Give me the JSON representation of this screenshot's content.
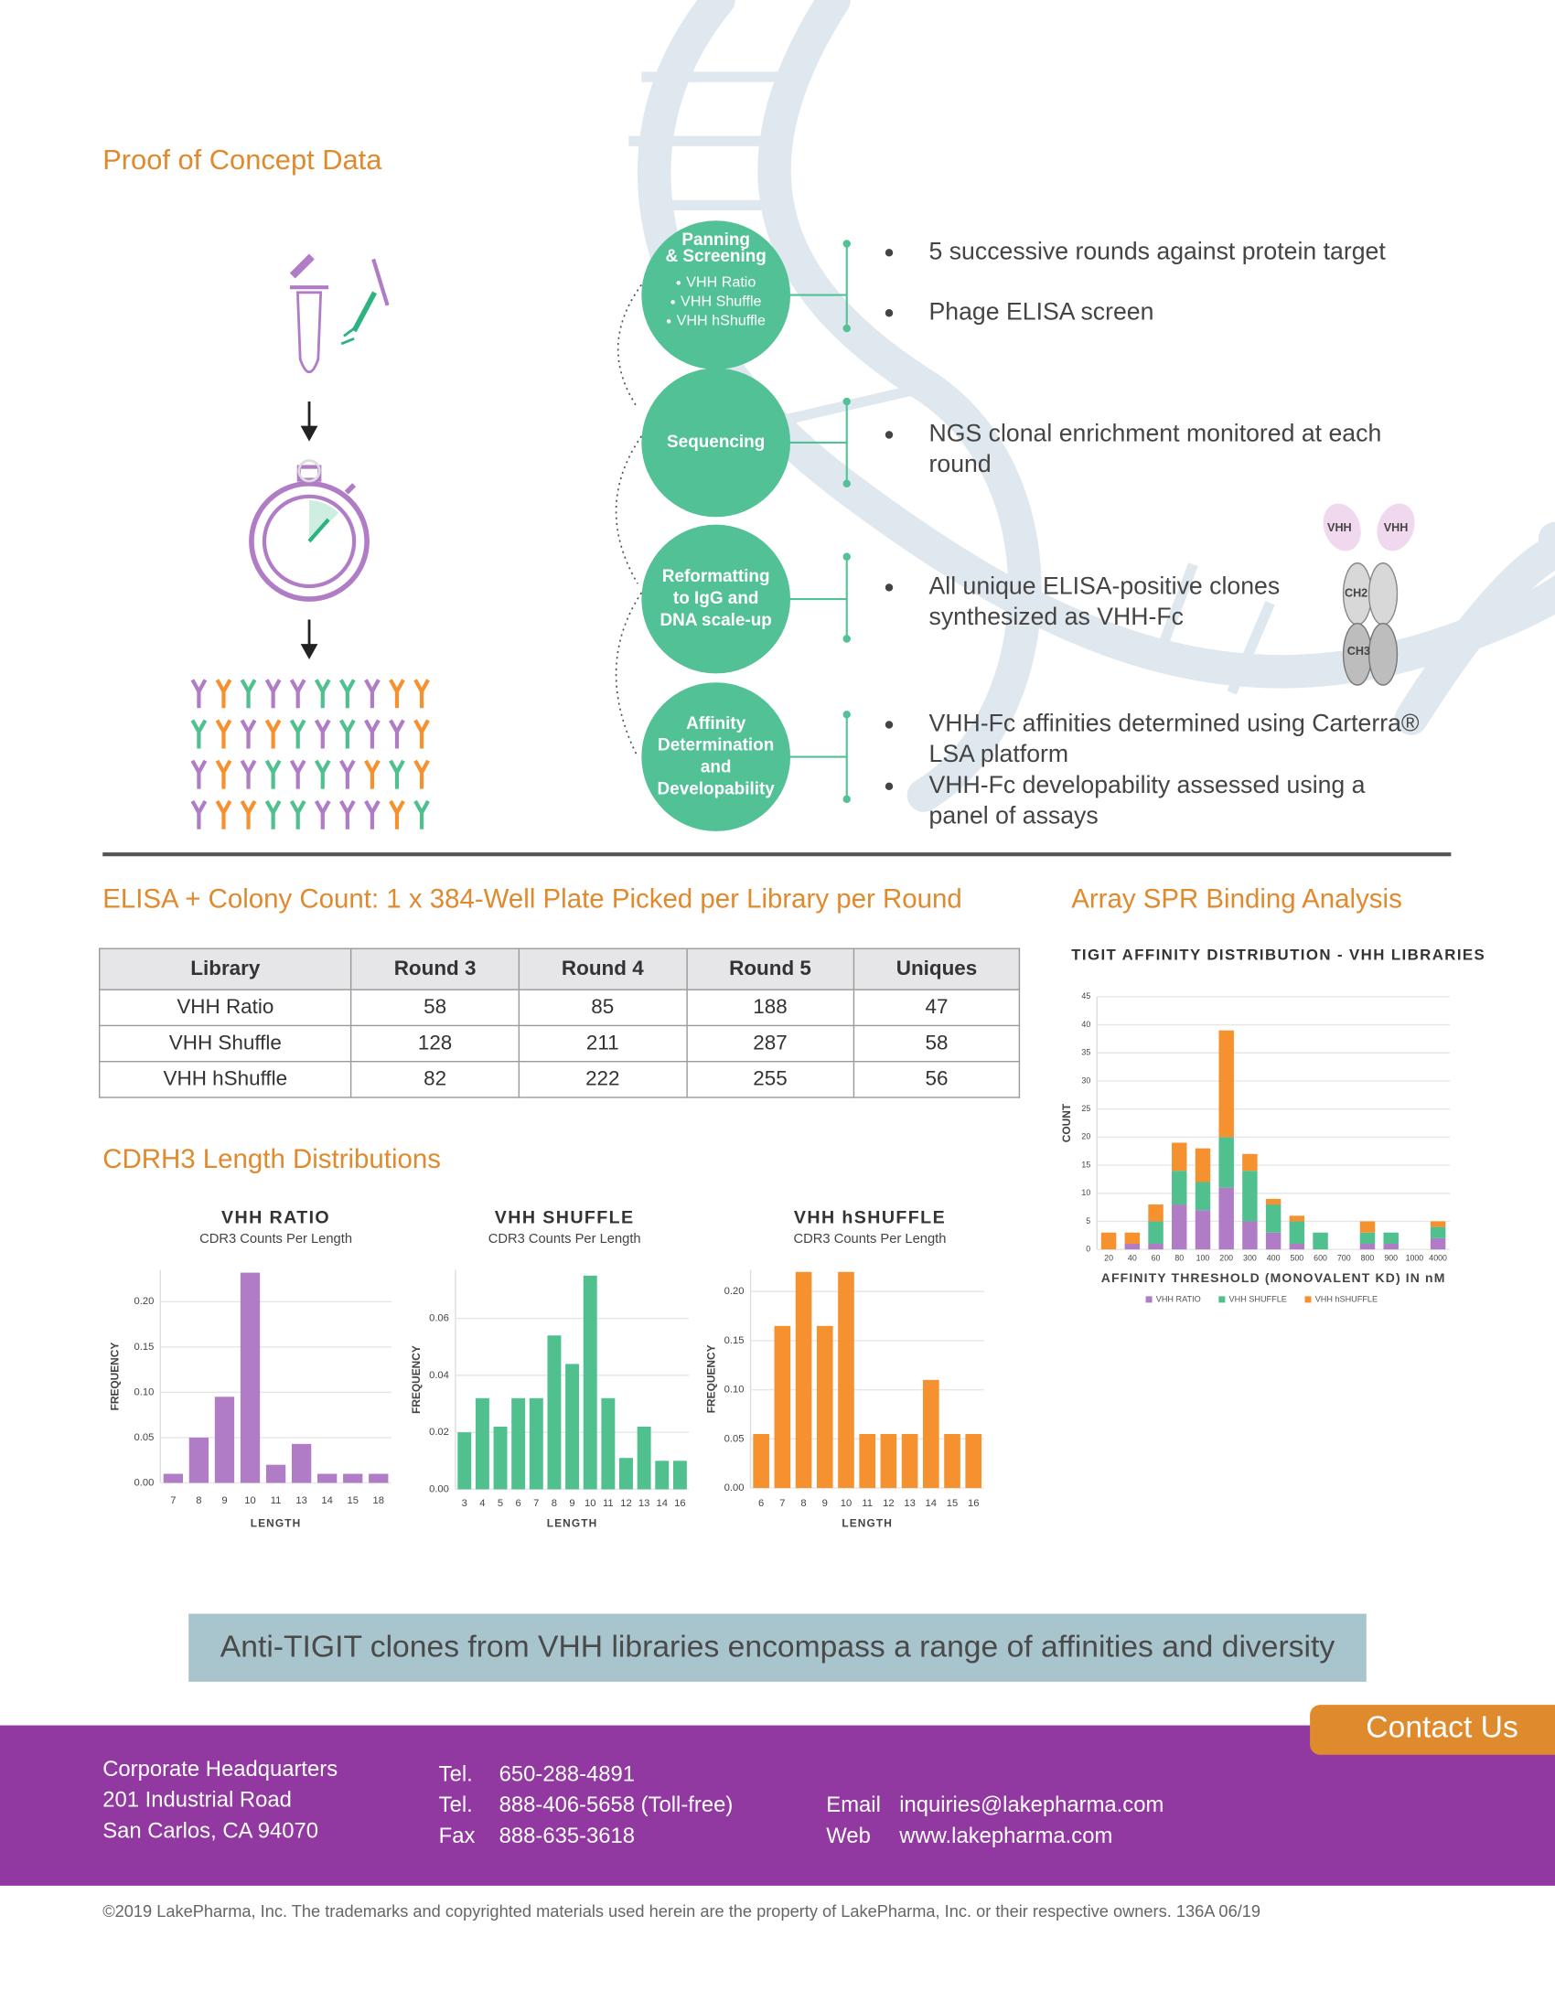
{
  "header": {
    "title": "Proof of Concept Data"
  },
  "workflow": {
    "steps": [
      {
        "title": [
          "Panning",
          "& Screening"
        ],
        "libraries": [
          "VHH Ratio",
          "VHH Shuffle",
          "VHH hShuffle"
        ],
        "bullets": [
          "5 successive rounds against protein target",
          "Phage ELISA screen"
        ]
      },
      {
        "title": [
          "Sequencing"
        ],
        "bullets": [
          "NGS clonal enrichment monitored at each round"
        ]
      },
      {
        "title": [
          "Reformatting",
          "to IgG and",
          "DNA scale-up"
        ],
        "bullets": [
          "All unique ELISA-positive clones synthesized as VHH-Fc"
        ]
      },
      {
        "title": [
          "Affinity",
          "Determination",
          "and",
          "Developability"
        ],
        "bullets": [
          "VHH-Fc affinities determined using Carterra® LSA platform",
          "VHH-Fc developability assessed using a panel of assays"
        ]
      }
    ],
    "antibody_labels": [
      "VHH",
      "VHH",
      "CH2",
      "CH3"
    ]
  },
  "table": {
    "title": "ELISA + Colony Count: 1 x 384-Well Plate Picked per Library per Round",
    "header": [
      "Library",
      "Round 3",
      "Round 4",
      "Round 5",
      "Uniques"
    ],
    "rows": [
      [
        "VHH Ratio",
        58,
        85,
        188,
        47
      ],
      [
        "VHH Shuffle",
        128,
        211,
        287,
        58
      ],
      [
        "VHH hShuffle",
        82,
        222,
        255,
        56
      ]
    ]
  },
  "cdr_title": "CDRH3 Length Distributions",
  "spr_title": "Array SPR Binding Analysis",
  "chart_data": [
    {
      "type": "bar",
      "title": "VHH RATIO",
      "subtitle": "CDR3 Counts Per Length",
      "x_label": "LENGTH",
      "y_label": "FREQUENCY",
      "color": "#b07cc6",
      "categories": [
        "7",
        "8",
        "9",
        "10",
        "11",
        "13",
        "14",
        "15",
        "18"
      ],
      "values": [
        0.01,
        0.05,
        0.095,
        0.232,
        0.02,
        0.043,
        0.01,
        0.01,
        0.01
      ],
      "ylim": [
        0,
        0.235
      ],
      "yticks": [
        {
          "value": 0,
          "label": "0.00"
        },
        0.05,
        {
          "value": 0.1,
          "label": "0.10"
        },
        0.15,
        {
          "value": 0.2,
          "label": "0.20"
        }
      ],
      "grid": true
    },
    {
      "type": "bar",
      "title": "VHH SHUFFLE",
      "subtitle": "CDR3 Counts Per Length",
      "x_label": "LENGTH",
      "y_label": "FREQUENCY",
      "color": "#4fc08e",
      "categories": [
        "3",
        "4",
        "5",
        "6",
        "7",
        "8",
        "9",
        "10",
        "11",
        "12",
        "13",
        "14",
        "16"
      ],
      "values": [
        0.02,
        0.032,
        0.022,
        0.032,
        0.032,
        0.054,
        0.044,
        0.075,
        0.032,
        0.011,
        0.022,
        0.01,
        0.01
      ],
      "ylim": [
        0,
        0.077
      ],
      "yticks": [
        {
          "value": 0,
          "label": "0.00"
        },
        0.02,
        0.04,
        0.06
      ],
      "grid": true
    },
    {
      "type": "bar",
      "title": "VHH hSHUFFLE",
      "subtitle": "CDR3 Counts Per Length",
      "x_label": "LENGTH",
      "y_label": "FREQUENCY",
      "color": "#f5922f",
      "categories": [
        "6",
        "7",
        "8",
        "9",
        "10",
        "11",
        "12",
        "13",
        "14",
        "15",
        "16"
      ],
      "values": [
        0.055,
        0.165,
        0.22,
        0.165,
        0.22,
        0.055,
        0.055,
        0.055,
        0.11,
        0.055,
        0.055
      ],
      "ylim": [
        0,
        0.222
      ],
      "yticks": [
        {
          "value": 0,
          "label": "0.00"
        },
        0.05,
        {
          "value": 0.1,
          "label": "0.10"
        },
        0.15,
        {
          "value": 0.2,
          "label": "0.20"
        }
      ],
      "grid": true
    },
    {
      "type": "bar",
      "stacked": true,
      "title": "TIGIT AFFINITY DISTRIBUTION - VHH LIBRARIES",
      "x_label": "AFFINITY THRESHOLD (MONOVALENT KD) IN nM",
      "y_label": "COUNT",
      "categories": [
        "20",
        "40",
        "60",
        "80",
        "100",
        "200",
        "300",
        "400",
        "500",
        "600",
        "700",
        "800",
        "900",
        "1000",
        "4000"
      ],
      "series": [
        {
          "name": "VHH RATIO",
          "color": "#b07cc6",
          "values": [
            0,
            1,
            1,
            8,
            7,
            11,
            5,
            3,
            1,
            0,
            0,
            1,
            1,
            0,
            2
          ]
        },
        {
          "name": "VHH SHUFFLE",
          "color": "#4fc08e",
          "values": [
            0,
            0,
            4,
            6,
            5,
            9,
            9,
            5,
            4,
            3,
            0,
            2,
            2,
            0,
            2
          ]
        },
        {
          "name": "VHH hSHUFFLE",
          "color": "#f5922f",
          "values": [
            3,
            2,
            3,
            5,
            6,
            19,
            3,
            1,
            1,
            0,
            0,
            2,
            0,
            0,
            1
          ]
        }
      ],
      "ylim": [
        0,
        45
      ],
      "yticks": [
        0,
        5,
        10,
        15,
        20,
        25,
        30,
        35,
        40,
        45
      ],
      "grid": true,
      "legend": "bottom"
    }
  ],
  "banner": "Anti-TIGIT clones from VHH libraries encompass a range of affinities and diversity",
  "footer": {
    "contact": "Contact Us",
    "address": [
      "Corporate Headquarters",
      "201 Industrial Road",
      "San Carlos, CA 94070"
    ],
    "phones": [
      [
        "Tel.",
        "650-288-4891"
      ],
      [
        "Tel.",
        "888-406-5658 (Toll-free)"
      ],
      [
        "Fax",
        "888-635-3618"
      ]
    ],
    "web": [
      [
        "Email",
        "inquiries@lakepharma.com"
      ],
      [
        "Web",
        "www.lakepharma.com"
      ]
    ]
  },
  "copyright": "©2019 LakePharma, Inc. The trademarks and copyrighted materials used herein are the property of LakePharma, Inc. or their respective owners. 136A  06/19"
}
